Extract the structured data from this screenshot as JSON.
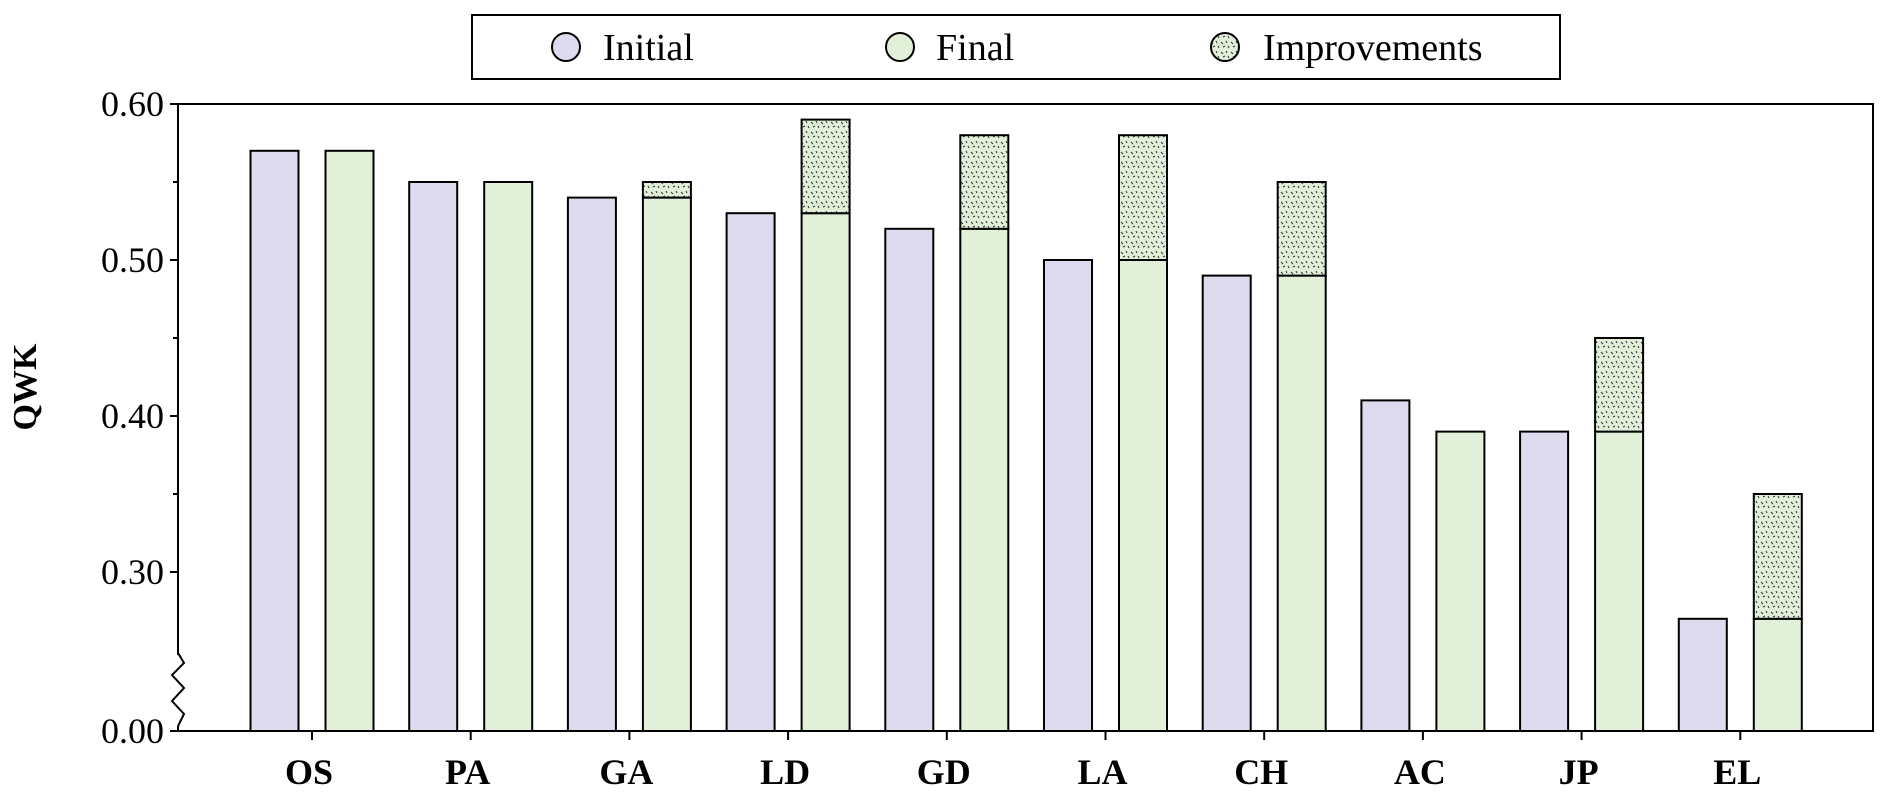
{
  "chart_data": {
    "type": "bar",
    "title": "",
    "xlabel": "",
    "ylabel": "QWK",
    "ylim": [
      0.0,
      0.6
    ],
    "axis_break": {
      "from": 0.0,
      "to": 0.25
    },
    "yticks": [
      0.0,
      0.3,
      0.4,
      0.5,
      0.6
    ],
    "ytick_labels": [
      "0.00",
      "0.30",
      "0.40",
      "0.50",
      "0.60"
    ],
    "legend_position": "top-center",
    "categories": [
      "OS",
      "PA",
      "GA",
      "LD",
      "GD",
      "LA",
      "CH",
      "AC",
      "JP",
      "EL"
    ],
    "series": [
      {
        "name": "Initial",
        "color": "#dedbee",
        "values": [
          0.57,
          0.55,
          0.54,
          0.53,
          0.52,
          0.5,
          0.49,
          0.41,
          0.39,
          0.27
        ]
      },
      {
        "name": "Final",
        "color": "#e2f0da",
        "values": [
          0.57,
          0.55,
          0.54,
          0.53,
          0.52,
          0.5,
          0.49,
          0.39,
          0.39,
          0.27
        ]
      },
      {
        "name": "Improvements",
        "color": "#e2f0da",
        "pattern": "dotted",
        "values": [
          0.0,
          0.0,
          0.01,
          0.06,
          0.06,
          0.08,
          0.06,
          0.0,
          0.06,
          0.08
        ]
      }
    ]
  }
}
